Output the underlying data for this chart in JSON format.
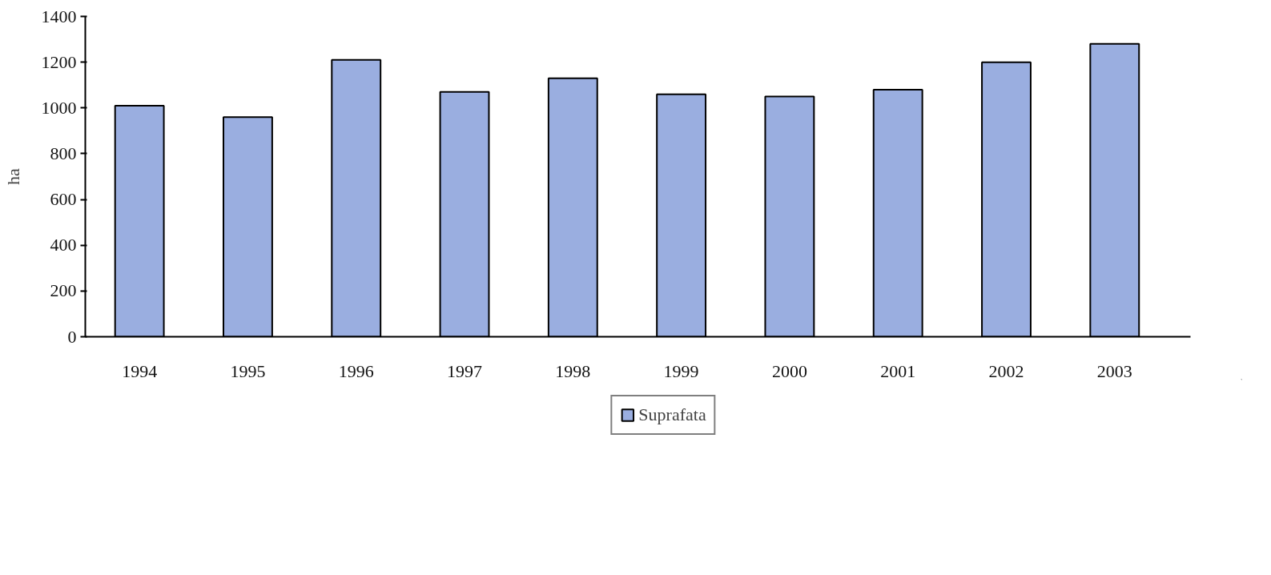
{
  "chart_data": {
    "type": "bar",
    "ylabel": "ha",
    "categories": [
      "1994",
      "1995",
      "1996",
      "1997",
      "1998",
      "1999",
      "2000",
      "2001",
      "2002",
      "2003"
    ],
    "series": [
      {
        "name": "Suprafata",
        "color": "#9aaee0",
        "values": [
          1010,
          960,
          1210,
          1070,
          1130,
          1060,
          1050,
          1080,
          1200,
          1280
        ]
      }
    ],
    "ylim": [
      0,
      1400
    ],
    "yticks": [
      0,
      200,
      400,
      600,
      800,
      1000,
      1200,
      1400
    ],
    "grid": false,
    "legend": "bottom"
  }
}
